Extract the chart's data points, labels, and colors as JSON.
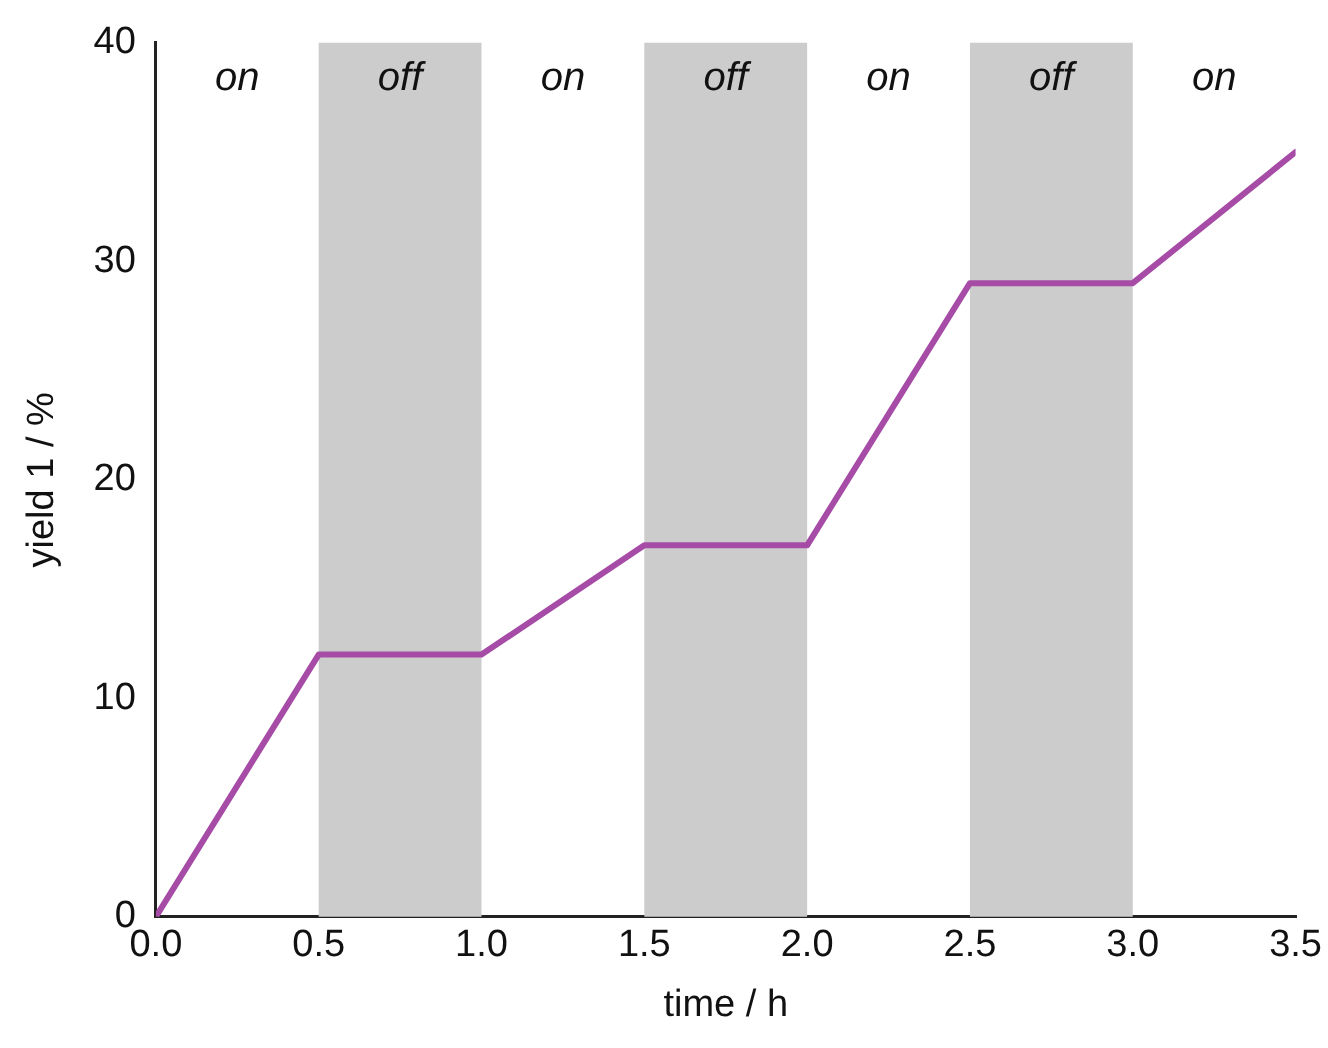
{
  "chart_data": {
    "type": "line",
    "xlabel": "time / h",
    "ylabel": "yield 1 / %",
    "x": [
      0,
      0.5,
      1.0,
      1.5,
      2.0,
      2.5,
      3.0,
      3.5
    ],
    "series": [
      {
        "color": "#a64ca6",
        "values": [
          0,
          12,
          12,
          17,
          17,
          29,
          29,
          35
        ]
      }
    ],
    "xlim": [
      0,
      3.5
    ],
    "ylim": [
      0,
      40
    ],
    "xticks": [
      {
        "value": 0,
        "label": "0.0"
      },
      {
        "value": 0.5,
        "label": "0.5"
      },
      {
        "value": 1,
        "label": "1.0"
      },
      {
        "value": 1.5,
        "label": "1.5"
      },
      {
        "value": 2,
        "label": "2.0"
      },
      {
        "value": 2.5,
        "label": "2.5"
      },
      {
        "value": 3,
        "label": "3.0"
      },
      {
        "value": 3.5,
        "label": "3.5"
      }
    ],
    "yticks": [
      0,
      10,
      20,
      30,
      40
    ],
    "bands": [
      {
        "axis": "x",
        "from": 0.5,
        "to": 1.0,
        "label": "off",
        "color": "#cccccc"
      },
      {
        "axis": "x",
        "from": 1.5,
        "to": 2.0,
        "label": "off",
        "color": "#cccccc"
      },
      {
        "axis": "x",
        "from": 2.5,
        "to": 3.0,
        "label": "off",
        "color": "#cccccc"
      }
    ],
    "annotations": [
      "on",
      "on",
      "on",
      "on"
    ],
    "grid": false,
    "legend": false,
    "marker": "none",
    "line_style": "solid"
  }
}
